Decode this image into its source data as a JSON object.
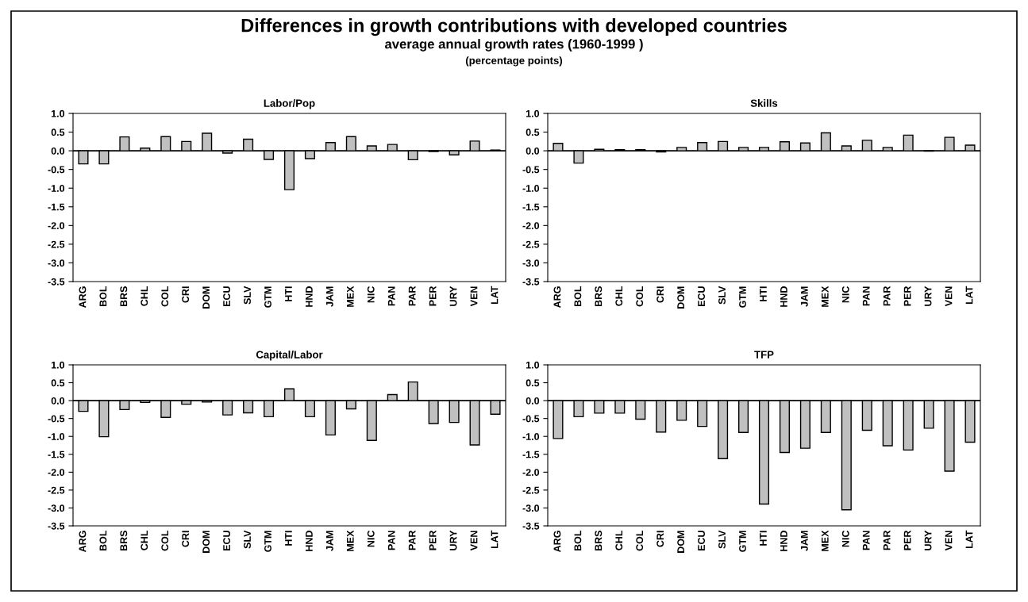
{
  "chart_data": [
    {
      "type": "bar",
      "title": "Labor/Pop",
      "annotations": [
        "Differences in growth contributions with developed countries",
        "average annual growth rates (1960-1999 )",
        "(percentage points)"
      ],
      "categories": [
        "ARG",
        "BOL",
        "BRS",
        "CHL",
        "COL",
        "CRI",
        "DOM",
        "ECU",
        "SLV",
        "GTM",
        "HTI",
        "HND",
        "JAM",
        "MEX",
        "NIC",
        "PAN",
        "PAR",
        "PER",
        "URY",
        "VEN",
        "LAT"
      ],
      "values": [
        -0.35,
        -0.35,
        0.37,
        0.07,
        0.38,
        0.25,
        0.47,
        -0.06,
        0.31,
        -0.23,
        -1.04,
        -0.21,
        0.22,
        0.38,
        0.13,
        0.17,
        -0.24,
        -0.02,
        -0.11,
        0.26,
        0.02
      ],
      "color": "#c0c0c0",
      "ref_lines": [
        {
          "axis": "y",
          "value": 0,
          "color": "#000000"
        }
      ],
      "ylim": [
        -3.5,
        1.0
      ],
      "yticks": [
        {
          "value": -3.5,
          "label": "-3.5"
        },
        {
          "value": -3.0,
          "label": "-3.0"
        },
        {
          "value": -2.5,
          "label": "-2.5"
        },
        {
          "value": -2.0,
          "label": "-2.0"
        },
        {
          "value": -1.5,
          "label": "-1.5"
        },
        {
          "value": -1.0,
          "label": "-1.0"
        },
        {
          "value": -0.5,
          "label": "-0.5"
        },
        {
          "value": 0.0,
          "label": "0.0"
        },
        {
          "value": 0.5,
          "label": "0.5"
        },
        {
          "value": 1.0,
          "label": "1.0"
        }
      ],
      "grid": false,
      "legend": false
    },
    {
      "type": "bar",
      "title": "Skills",
      "categories": [
        "ARG",
        "BOL",
        "BRS",
        "CHL",
        "COL",
        "CRI",
        "DOM",
        "ECU",
        "SLV",
        "GTM",
        "HTI",
        "HND",
        "JAM",
        "MEX",
        "NIC",
        "PAN",
        "PAR",
        "PER",
        "URY",
        "VEN",
        "LAT"
      ],
      "values": [
        0.2,
        -0.33,
        0.04,
        0.03,
        0.03,
        -0.03,
        0.09,
        0.22,
        0.25,
        0.09,
        0.09,
        0.24,
        0.21,
        0.48,
        0.13,
        0.28,
        0.09,
        0.42,
        -0.01,
        0.36,
        0.15
      ],
      "color": "#c0c0c0",
      "ref_lines": [
        {
          "axis": "y",
          "value": 0,
          "color": "#000000"
        }
      ],
      "ylim": [
        -3.5,
        1.0
      ],
      "yticks": [
        {
          "value": -3.5,
          "label": "-3.5"
        },
        {
          "value": -3.0,
          "label": "-3.0"
        },
        {
          "value": -2.5,
          "label": "-2.5"
        },
        {
          "value": -2.0,
          "label": "-2.0"
        },
        {
          "value": -1.5,
          "label": "-1.5"
        },
        {
          "value": -1.0,
          "label": "-1.0"
        },
        {
          "value": -0.5,
          "label": "-0.5"
        },
        {
          "value": 0.0,
          "label": "0.0"
        },
        {
          "value": 0.5,
          "label": "0.5"
        },
        {
          "value": 1.0,
          "label": "1.0"
        }
      ],
      "grid": false,
      "legend": false
    },
    {
      "type": "bar",
      "title": "Capital/Labor",
      "categories": [
        "ARG",
        "BOL",
        "BRS",
        "CHL",
        "COL",
        "CRI",
        "DOM",
        "ECU",
        "SLV",
        "GTM",
        "HTI",
        "HND",
        "JAM",
        "MEX",
        "NIC",
        "PAN",
        "PAR",
        "PER",
        "URY",
        "VEN",
        "LAT"
      ],
      "values": [
        -0.3,
        -1.01,
        -0.25,
        -0.05,
        -0.47,
        -0.1,
        -0.04,
        -0.4,
        -0.34,
        -0.45,
        0.33,
        -0.45,
        -0.96,
        -0.23,
        -1.11,
        0.17,
        0.52,
        -0.64,
        -0.61,
        -1.24,
        -0.38
      ],
      "color": "#c0c0c0",
      "ref_lines": [
        {
          "axis": "y",
          "value": 0,
          "color": "#000000"
        }
      ],
      "ylim": [
        -3.5,
        1.0
      ],
      "yticks": [
        {
          "value": -3.5,
          "label": "-3.5"
        },
        {
          "value": -3.0,
          "label": "-3.0"
        },
        {
          "value": -2.5,
          "label": "-2.5"
        },
        {
          "value": -2.0,
          "label": "-2.0"
        },
        {
          "value": -1.5,
          "label": "-1.5"
        },
        {
          "value": -1.0,
          "label": "-1.0"
        },
        {
          "value": -0.5,
          "label": "-0.5"
        },
        {
          "value": 0.0,
          "label": "0.0"
        },
        {
          "value": 0.5,
          "label": "0.5"
        },
        {
          "value": 1.0,
          "label": "1.0"
        }
      ],
      "grid": false,
      "legend": false
    },
    {
      "type": "bar",
      "title": "TFP",
      "categories": [
        "ARG",
        "BOL",
        "BRS",
        "CHL",
        "COL",
        "CRI",
        "DOM",
        "ECU",
        "SLV",
        "GTM",
        "HTI",
        "HND",
        "JAM",
        "MEX",
        "NIC",
        "PAN",
        "PAR",
        "PER",
        "URY",
        "VEN",
        "LAT"
      ],
      "values": [
        -1.06,
        -0.45,
        -0.35,
        -0.35,
        -0.52,
        -0.88,
        -0.55,
        -0.72,
        -1.62,
        -0.89,
        -2.89,
        -1.45,
        -1.33,
        -0.89,
        -3.05,
        -0.83,
        -1.26,
        -1.38,
        -0.77,
        -1.97,
        -1.16
      ],
      "color": "#c0c0c0",
      "ref_lines": [
        {
          "axis": "y",
          "value": 0,
          "color": "#000000"
        }
      ],
      "ylim": [
        -3.5,
        1.0
      ],
      "yticks": [
        {
          "value": -3.5,
          "label": "-3.5"
        },
        {
          "value": -3.0,
          "label": "-3.0"
        },
        {
          "value": -2.5,
          "label": "-2.5"
        },
        {
          "value": -2.0,
          "label": "-2.0"
        },
        {
          "value": -1.5,
          "label": "-1.5"
        },
        {
          "value": -1.0,
          "label": "-1.0"
        },
        {
          "value": -0.5,
          "label": "-0.5"
        },
        {
          "value": 0.0,
          "label": "0.0"
        },
        {
          "value": 0.5,
          "label": "0.5"
        },
        {
          "value": 1.0,
          "label": "1.0"
        }
      ],
      "grid": false,
      "legend": false
    }
  ]
}
